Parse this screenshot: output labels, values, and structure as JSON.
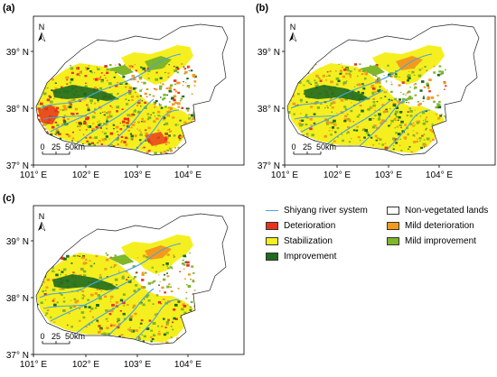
{
  "panels": [
    {
      "label": "(a)",
      "variant": "a"
    },
    {
      "label": "(b)",
      "variant": "b"
    },
    {
      "label": "(c)",
      "variant": "c"
    }
  ],
  "axes": {
    "lat_labels": [
      "39° N",
      "38° N",
      "37° N"
    ],
    "lon_labels": [
      "101° E",
      "102° E",
      "103° E",
      "104° E"
    ]
  },
  "north_arrow": "N",
  "scale_bar": {
    "values": [
      "0",
      "25",
      "50"
    ],
    "unit": "km"
  },
  "legend": {
    "items": [
      {
        "label": "Shiyang river system",
        "color": "#4aa3df",
        "kind": "line"
      },
      {
        "label": "Non-vegetated lands",
        "color": "#ffffff",
        "kind": "box"
      },
      {
        "label": "Deterioration",
        "color": "#e8331c",
        "kind": "box"
      },
      {
        "label": "Mild deterioration",
        "color": "#f39a1e",
        "kind": "box"
      },
      {
        "label": "Stabilization",
        "color": "#f5ef1f",
        "kind": "box"
      },
      {
        "label": "Mild improvement",
        "color": "#7fb62a",
        "kind": "box"
      },
      {
        "label": "Improvement",
        "color": "#1f6a1f",
        "kind": "box"
      }
    ]
  }
}
